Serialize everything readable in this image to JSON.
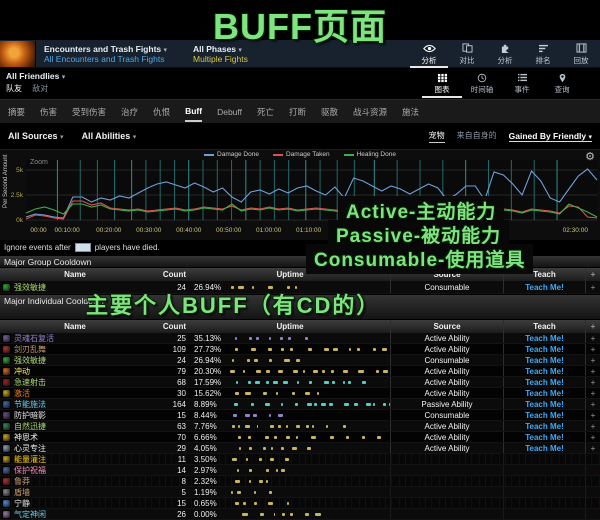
{
  "annotations": {
    "title": "BUFF页面",
    "active_note": "Active-主动能力",
    "passive_note": "Passive-被动能力",
    "consumable_note": "Consumable-使用道具",
    "individual_note": "主要个人BUFF（有CD的）"
  },
  "navbar": {
    "fight_selector": {
      "label": "Encounters and Trash Fights",
      "value": "All Encounters and Trash Fights"
    },
    "phase_selector": {
      "label": "All Phases",
      "value": "Multiple Fights"
    },
    "menu": [
      {
        "label": "分析",
        "icon": "eye-icon",
        "active": true
      },
      {
        "label": "对比",
        "icon": "compare-icon",
        "active": false
      },
      {
        "label": "分析",
        "icon": "puzzle-icon",
        "active": false
      },
      {
        "label": "排名",
        "icon": "ranking-icon",
        "active": false
      },
      {
        "label": "回放",
        "icon": "replay-icon",
        "active": false
      }
    ]
  },
  "subbar": {
    "source_selector": "All Friendlies",
    "friendly_tab": "队友",
    "enemy_tab": "敌对",
    "views": [
      {
        "label": "图表",
        "icon": "grid-icon",
        "active": true
      },
      {
        "label": "时间轴",
        "icon": "clock-icon",
        "active": false
      },
      {
        "label": "事件",
        "icon": "list-icon",
        "active": false
      },
      {
        "label": "查询",
        "icon": "pin-icon",
        "active": false
      }
    ]
  },
  "tabs": {
    "items": [
      "摘要",
      "伤害",
      "受到伤害",
      "治疗",
      "仇恨",
      "Buff",
      "Debuff",
      "死亡",
      "打断",
      "驱散",
      "战斗资源",
      "施法"
    ],
    "active": "Buff"
  },
  "filterbar": {
    "sources": "All Sources",
    "abilities": "All Abilities",
    "pets": "宠物",
    "self_only": "来自自身的",
    "gained": "Gained By Friendly",
    "gear_icon": "⚙"
  },
  "chart_data": {
    "type": "line",
    "title": "",
    "ylabel": "Per Second Amount",
    "yticks": [
      {
        "label": "5k",
        "value": 5
      },
      {
        "label": "2.5k",
        "value": 2.5
      },
      {
        "label": "0k",
        "value": 0
      }
    ],
    "ylim": [
      0,
      6
    ],
    "zoom_label": "Zoom",
    "xticks": [
      {
        "label": "00:00",
        "pos": 0.022
      },
      {
        "label": "00:10:00",
        "pos": 0.072
      },
      {
        "label": "00:20:00",
        "pos": 0.145
      },
      {
        "label": "00:30:00",
        "pos": 0.215
      },
      {
        "label": "00:40:00",
        "pos": 0.285
      },
      {
        "label": "00:50:00",
        "pos": 0.355
      },
      {
        "label": "01:00:00",
        "pos": 0.425
      },
      {
        "label": "01:10:00",
        "pos": 0.495
      },
      {
        "label": "01:2",
        "pos": 0.552
      },
      {
        "label": "02:30:00",
        "pos": 0.962
      }
    ],
    "phase_markers": [
      0.055,
      0.095,
      0.125,
      0.155,
      0.185,
      0.21,
      0.235,
      0.26,
      0.285,
      0.31,
      0.335,
      0.36,
      0.385,
      0.41,
      0.435,
      0.46,
      0.49,
      0.515,
      0.545,
      0.575,
      0.61,
      0.65,
      0.69,
      0.73,
      0.77,
      0.81,
      0.85,
      0.89,
      0.93
    ],
    "series": [
      {
        "name": "Damage Done",
        "color": "#6f9fd8",
        "values": [
          0.3,
          0.6,
          0.5,
          0.3,
          0.2,
          2.3,
          2.3,
          1.8,
          2.2,
          2.0,
          2.4,
          2.2,
          2.7,
          3.2,
          3.6,
          3.8,
          3.5,
          3.2,
          3.7,
          3.3,
          2.8,
          3.2,
          2.3,
          1.8,
          2.8,
          3.0,
          2.6,
          3.1,
          2.7,
          3.2,
          3.4,
          2.9,
          2.5,
          3.3,
          2.2,
          4.2,
          3.9,
          3.4,
          2.9,
          3.4,
          3.1,
          2.6,
          3.1,
          3.6,
          3.2,
          2.0,
          2.6,
          3.4,
          3.4,
          2.0,
          4.8,
          4.5,
          3.6,
          2.5,
          4.9,
          3.9,
          2.2,
          1.8,
          3.1,
          4.4,
          5.1,
          4.0
        ]
      },
      {
        "name": "Damage Taken",
        "color": "#e05050",
        "values": [
          0.1,
          0.5,
          0.4,
          0.2,
          0.1,
          1.9,
          1.9,
          1.5,
          1.7,
          1.2,
          1.1,
          1.0,
          1.1,
          0.9,
          1.0,
          1.1,
          1.2,
          1.0,
          1.1,
          1.3,
          1.2,
          1.1,
          1.4,
          1.0,
          1.2,
          1.1,
          1.3,
          1.1,
          1.2,
          1.0,
          1.1,
          1.2,
          1.1,
          1.0,
          0.9,
          2.3,
          1.6,
          1.2,
          1.1,
          1.2,
          1.1,
          1.0,
          1.1,
          1.2,
          1.1,
          0.8,
          0.9,
          1.1,
          1.0,
          0.7,
          1.2,
          1.1,
          1.0,
          0.8,
          1.1,
          1.0,
          0.9,
          0.7,
          1.4,
          1.3,
          0.3,
          0.2
        ]
      },
      {
        "name": "Healing Done",
        "color": "#3fae4a",
        "values": [
          0.7,
          1.1,
          1.3,
          1.0,
          0.6,
          1.6,
          1.6,
          1.3,
          1.5,
          1.1,
          1.0,
          0.9,
          1.0,
          0.8,
          0.9,
          1.0,
          1.1,
          0.9,
          1.0,
          1.2,
          1.1,
          1.0,
          1.6,
          0.9,
          1.1,
          1.0,
          1.2,
          1.0,
          1.1,
          0.9,
          1.0,
          1.1,
          1.0,
          0.9,
          0.8,
          1.8,
          1.4,
          1.1,
          1.0,
          1.1,
          1.0,
          0.9,
          1.0,
          1.1,
          1.0,
          0.7,
          0.8,
          1.0,
          0.9,
          0.6,
          1.1,
          1.0,
          0.9,
          0.7,
          1.0,
          0.9,
          0.8,
          0.6,
          1.6,
          1.2,
          0.8,
          0.3
        ]
      }
    ],
    "legend_position": "top"
  },
  "ignore_line": {
    "prefix": "Ignore events after",
    "suffix": "players have died.",
    "value": ""
  },
  "group_section": {
    "title": "Major Group Cooldown",
    "columns": {
      "name": "Name",
      "count": "Count",
      "uptime": "Uptime",
      "source": "Source",
      "teach": "Teach",
      "plus": "+"
    },
    "rows": [
      {
        "name": "强效敏捷",
        "count": "24",
        "uptime": "26.94%",
        "source": "Consumable",
        "teach": "Teach Me!",
        "plus": "+",
        "name_color": "#ABD473",
        "icon_color": "#2faa2f",
        "bar_color": "#c8b45a"
      }
    ]
  },
  "individual_section": {
    "title": "Major Individual Cooldown",
    "columns": {
      "name": "Name",
      "count": "Count",
      "uptime": "Uptime",
      "source": "Source",
      "teach": "Teach",
      "plus": "+"
    },
    "rows": [
      {
        "name": "灵魂石复活",
        "count": "25",
        "uptime": "35.13%",
        "source": "Active Ability",
        "teach": "Teach Me!",
        "plus": "+",
        "name_color": "#9482C9",
        "icon_color": "#7a5fa0",
        "bar_color": "#9482C9"
      },
      {
        "name": "剑刃乱舞",
        "count": "109",
        "uptime": "27.73%",
        "source": "Active Ability",
        "teach": "Teach Me!",
        "plus": "+",
        "name_color": "#C79C6E",
        "icon_color": "#b03030",
        "bar_color": "#c8b45a"
      },
      {
        "name": "强效敏捷",
        "count": "24",
        "uptime": "26.94%",
        "source": "Consumable",
        "teach": "Teach Me!",
        "plus": "+",
        "name_color": "#ABD473",
        "icon_color": "#2faa2f",
        "bar_color": "#c8b45a"
      },
      {
        "name": "冲动",
        "count": "79",
        "uptime": "20.30%",
        "source": "Active Ability",
        "teach": "Teach Me!",
        "plus": "+",
        "name_color": "#FFF569",
        "icon_color": "#d86a1a",
        "bar_color": "#c8b45a"
      },
      {
        "name": "急速射击",
        "count": "68",
        "uptime": "17.59%",
        "source": "Active Ability",
        "teach": "Teach Me!",
        "plus": "+",
        "name_color": "#ABD473",
        "icon_color": "#a02020",
        "bar_color": "#4dd0c4"
      },
      {
        "name": "激活",
        "count": "30",
        "uptime": "15.62%",
        "source": "Active Ability",
        "teach": "Teach Me!",
        "plus": "+",
        "name_color": "#FF7D0A",
        "icon_color": "#c7a71a",
        "bar_color": "#c8b45a"
      },
      {
        "name": "节能施法",
        "count": "164",
        "uptime": "8.89%",
        "source": "Passive Ability",
        "teach": "Teach Me!",
        "plus": "+",
        "name_color": "#69CCF0",
        "icon_color": "#3a6ab0",
        "bar_color": "#4dd0c4"
      },
      {
        "name": "防护暗影",
        "count": "15",
        "uptime": "8.44%",
        "source": "Consumable",
        "teach": "Teach Me!",
        "plus": "+",
        "name_color": "#e8e8e8",
        "icon_color": "#6a4a8a",
        "bar_color": "#9482C9"
      },
      {
        "name": "自然迅捷",
        "count": "63",
        "uptime": "7.76%",
        "source": "Active Ability",
        "teach": "Teach Me!",
        "plus": "+",
        "name_color": "#ABD473",
        "icon_color": "#2f8a4f",
        "bar_color": "#c8b45a"
      },
      {
        "name": "神恩术",
        "count": "70",
        "uptime": "6.66%",
        "source": "Active Ability",
        "teach": "Teach Me!",
        "plus": "+",
        "name_color": "#f0f0f0",
        "icon_color": "#c7a71a",
        "bar_color": "#c8b45a"
      },
      {
        "name": "心灵专注",
        "count": "29",
        "uptime": "4.05%",
        "source": "Active Ability",
        "teach": "Teach Me!",
        "plus": "+",
        "name_color": "#f0f0f0",
        "icon_color": "#8aa0c0",
        "bar_color": "#c8b45a"
      },
      {
        "name": "能量灌注",
        "count": "11",
        "uptime": "3.50%",
        "source": "",
        "teach": "",
        "plus": "",
        "name_color": "#FFD100",
        "icon_color": "#c7a71a",
        "bar_color": "#c8b45a"
      },
      {
        "name": "保护祝福",
        "count": "14",
        "uptime": "2.97%",
        "source": "",
        "teach": "",
        "plus": "",
        "name_color": "#F58CBA",
        "icon_color": "#4a6ab0",
        "bar_color": "#c8b45a"
      },
      {
        "name": "鲁莽",
        "count": "8",
        "uptime": "2.32%",
        "source": "",
        "teach": "",
        "plus": "",
        "name_color": "#C79C6E",
        "icon_color": "#b03030",
        "bar_color": "#c8b45a"
      },
      {
        "name": "盾墙",
        "count": "5",
        "uptime": "1.19%",
        "source": "",
        "teach": "",
        "plus": "",
        "name_color": "#C79C6E",
        "icon_color": "#8a8a8a",
        "bar_color": "#c8b45a"
      },
      {
        "name": "宁静",
        "count": "15",
        "uptime": "0.65%",
        "source": "",
        "teach": "",
        "plus": "",
        "name_color": "#dddddd",
        "icon_color": "#4a90d0",
        "bar_color": "#c8b45a"
      },
      {
        "name": "气定神闲",
        "count": "26",
        "uptime": "0.00%",
        "source": "",
        "teach": "",
        "plus": "",
        "name_color": "#69CCF0",
        "icon_color": "#9a7ab0",
        "bar_color": "#c8b45a"
      }
    ]
  }
}
